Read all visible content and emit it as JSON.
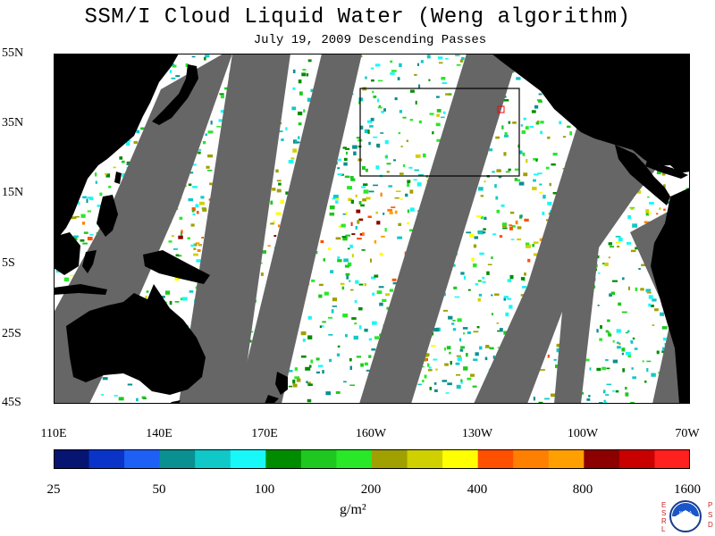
{
  "title": "SSM/I Cloud Liquid Water (Weng algorithm)",
  "subtitle": "July 19, 2009  Descending Passes",
  "map": {
    "lat_labels": [
      "55N",
      "35N",
      "15N",
      "5S",
      "25S",
      "45S"
    ],
    "lon_labels": [
      "110E",
      "140E",
      "170E",
      "160W",
      "130W",
      "100W",
      "70W"
    ],
    "lat_range": [
      -45,
      55
    ],
    "lon_range": [
      110,
      290
    ],
    "colors": {
      "land": "#000000",
      "no_data": "#666666",
      "clear": "#ffffff",
      "box": "#000000",
      "marker": "#ff0000"
    }
  },
  "colorbar": {
    "labels": [
      "25",
      "50",
      "100",
      "200",
      "400",
      "800",
      "1600"
    ],
    "units": "g/m²",
    "colors": [
      "#061472",
      "#0a34c8",
      "#1e60f5",
      "#0a9090",
      "#10c8c8",
      "#18f8f8",
      "#008c00",
      "#1ec81e",
      "#28e828",
      "#a0a000",
      "#d0d000",
      "#ffff00",
      "#ff5000",
      "#ff8000",
      "#ffa000",
      "#8c0000",
      "#c80000",
      "#ff2020"
    ]
  },
  "logo": {
    "left_letters": "ESRL",
    "right_letters": "PSD",
    "center": "NOAA"
  }
}
